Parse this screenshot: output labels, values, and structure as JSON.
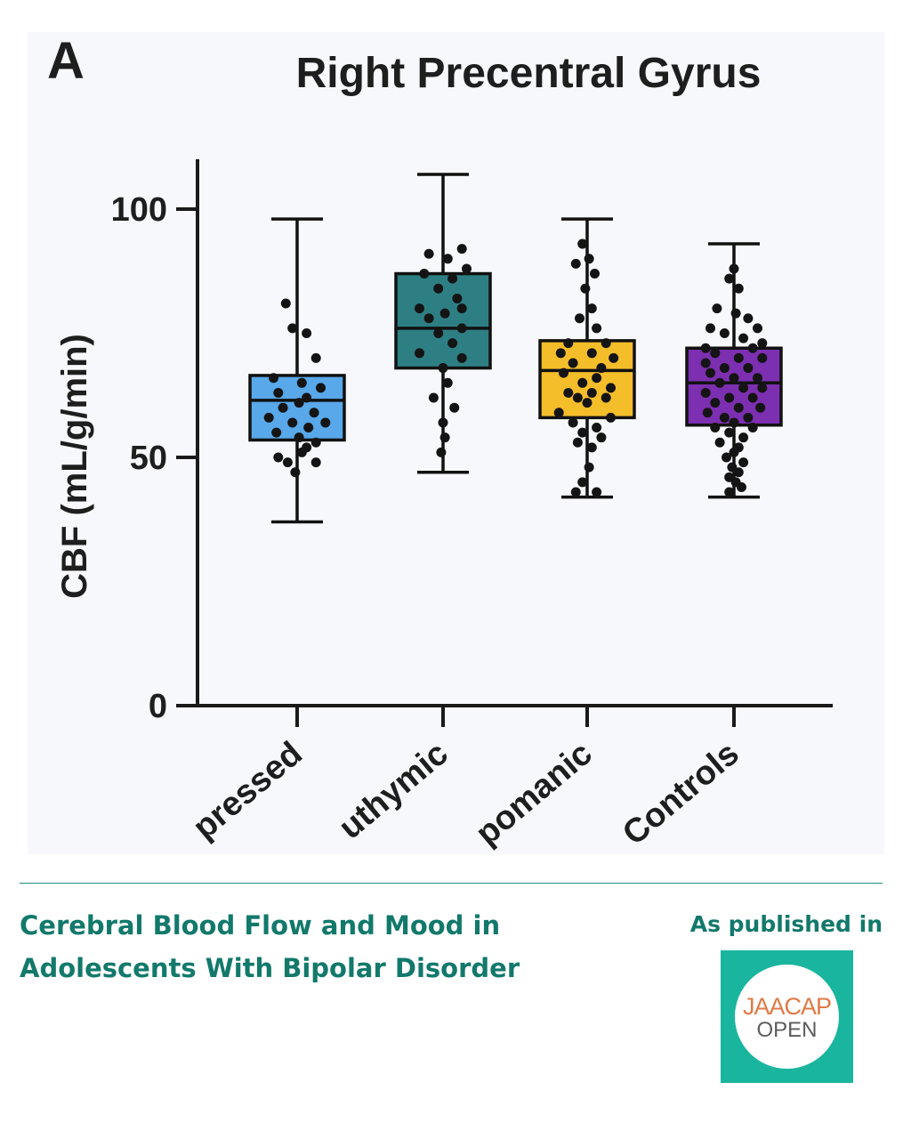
{
  "chart_data": {
    "type": "box",
    "panel_label": "A",
    "title": "Right Precentral Gyrus",
    "ylabel": "CBF (mL/g/min)",
    "ylim": [
      0,
      105
    ],
    "yticks": [
      0,
      50,
      100
    ],
    "grid": false,
    "categories": [
      "pressed",
      "uthymic",
      "pomanic",
      "Controls"
    ],
    "colors": [
      "#58a8ea",
      "#2e7f84",
      "#f4bd2a",
      "#7c2fb0"
    ],
    "boxes": [
      {
        "category": "pressed",
        "min": 37,
        "q1": 53.5,
        "median": 61.5,
        "q3": 66.5,
        "max": 98,
        "points": [
          [
            -0.12,
            81
          ],
          [
            -0.05,
            76
          ],
          [
            0.1,
            75
          ],
          [
            0.2,
            70
          ],
          [
            -0.25,
            66
          ],
          [
            0.05,
            65
          ],
          [
            0.25,
            64
          ],
          [
            -0.2,
            63
          ],
          [
            0.1,
            62
          ],
          [
            0.02,
            61
          ],
          [
            -0.15,
            60
          ],
          [
            0.18,
            59
          ],
          [
            -0.3,
            58
          ],
          [
            -0.05,
            57
          ],
          [
            0.3,
            57
          ],
          [
            0.12,
            56
          ],
          [
            -0.22,
            55
          ],
          [
            0.02,
            54
          ],
          [
            0.2,
            53
          ],
          [
            0.1,
            52
          ],
          [
            -0.2,
            50
          ],
          [
            -0.1,
            49
          ],
          [
            0.2,
            49
          ],
          [
            0.05,
            51
          ],
          [
            -0.02,
            47
          ]
        ]
      },
      {
        "category": "uthymic",
        "min": 47,
        "q1": 68,
        "median": 76,
        "q3": 87,
        "max": 107,
        "points": [
          [
            0.2,
            92
          ],
          [
            -0.15,
            91
          ],
          [
            0.05,
            90
          ],
          [
            0.25,
            88
          ],
          [
            -0.2,
            87
          ],
          [
            0.1,
            86
          ],
          [
            -0.05,
            84
          ],
          [
            0.15,
            82
          ],
          [
            -0.25,
            80
          ],
          [
            0.2,
            80
          ],
          [
            0.02,
            79
          ],
          [
            -0.15,
            78
          ],
          [
            0.2,
            76
          ],
          [
            -0.05,
            75
          ],
          [
            0.1,
            73
          ],
          [
            -0.25,
            71
          ],
          [
            0.2,
            70
          ],
          [
            0,
            68
          ],
          [
            0.05,
            65
          ],
          [
            -0.1,
            62
          ],
          [
            0.12,
            60
          ],
          [
            0,
            57
          ],
          [
            0.02,
            54
          ],
          [
            -0.02,
            51
          ]
        ]
      },
      {
        "category": "pomanic",
        "min": 42,
        "q1": 58,
        "median": 67.5,
        "q3": 73.5,
        "max": 98,
        "points": [
          [
            -0.05,
            93
          ],
          [
            0.02,
            90
          ],
          [
            -0.12,
            89
          ],
          [
            0.08,
            87
          ],
          [
            -0.02,
            84
          ],
          [
            0.05,
            80
          ],
          [
            -0.08,
            78
          ],
          [
            0.1,
            76
          ],
          [
            -0.2,
            73
          ],
          [
            0.2,
            73
          ],
          [
            -0.28,
            71
          ],
          [
            0.05,
            71
          ],
          [
            0.28,
            70
          ],
          [
            -0.15,
            69
          ],
          [
            0.15,
            68
          ],
          [
            -0.25,
            67
          ],
          [
            0.1,
            66
          ],
          [
            -0.05,
            65
          ],
          [
            0.25,
            64
          ],
          [
            -0.2,
            63
          ],
          [
            0.05,
            63
          ],
          [
            -0.1,
            62
          ],
          [
            0.2,
            62
          ],
          [
            0,
            61
          ],
          [
            -0.3,
            59
          ],
          [
            0.25,
            58
          ],
          [
            -0.15,
            57
          ],
          [
            0.1,
            56
          ],
          [
            -0.05,
            55
          ],
          [
            0.15,
            54
          ],
          [
            -0.1,
            53
          ],
          [
            0.05,
            52
          ],
          [
            0.02,
            48
          ],
          [
            -0.05,
            45
          ],
          [
            0.1,
            43
          ],
          [
            -0.12,
            43
          ]
        ]
      },
      {
        "category": "Controls",
        "min": 42,
        "q1": 56.5,
        "median": 65,
        "q3": 72,
        "max": 93,
        "points": [
          [
            0,
            88
          ],
          [
            -0.05,
            86
          ],
          [
            0.05,
            84
          ],
          [
            -0.18,
            80
          ],
          [
            0.02,
            79
          ],
          [
            0.15,
            78
          ],
          [
            -0.25,
            76
          ],
          [
            0.25,
            76
          ],
          [
            -0.1,
            75
          ],
          [
            0.1,
            74
          ],
          [
            0.3,
            73
          ],
          [
            -0.3,
            72
          ],
          [
            0.2,
            72
          ],
          [
            -0.2,
            71
          ],
          [
            0.05,
            70
          ],
          [
            0.3,
            70
          ],
          [
            -0.3,
            69
          ],
          [
            -0.1,
            68
          ],
          [
            0.15,
            68
          ],
          [
            -0.25,
            67
          ],
          [
            0.25,
            66
          ],
          [
            0,
            66
          ],
          [
            -0.15,
            65
          ],
          [
            0.1,
            64
          ],
          [
            0.3,
            64
          ],
          [
            -0.3,
            63
          ],
          [
            -0.05,
            62
          ],
          [
            0.2,
            62
          ],
          [
            -0.2,
            61
          ],
          [
            0.05,
            60
          ],
          [
            0.28,
            60
          ],
          [
            -0.28,
            59
          ],
          [
            -0.1,
            58
          ],
          [
            0.15,
            58
          ],
          [
            0,
            57
          ],
          [
            -0.2,
            56
          ],
          [
            0.2,
            56
          ],
          [
            -0.05,
            55
          ],
          [
            0.1,
            54
          ],
          [
            -0.15,
            53
          ],
          [
            0.05,
            52
          ],
          [
            0,
            51
          ],
          [
            -0.08,
            50
          ],
          [
            0.1,
            49
          ],
          [
            -0.02,
            48
          ],
          [
            0.05,
            47
          ],
          [
            -0.05,
            46
          ],
          [
            0.02,
            45
          ],
          [
            0.08,
            44
          ],
          [
            -0.05,
            43
          ]
        ]
      }
    ]
  },
  "caption": {
    "title": "Cerebral Blood Flow and Mood in Adolescents With Bipolar Disorder",
    "published_label": "As published in"
  },
  "logo": {
    "line1": "JAACAP",
    "line2": "OPEN",
    "colors": {
      "background": "#1ab59f",
      "line1": "#e07a45",
      "line2": "#5c5c5c"
    }
  }
}
